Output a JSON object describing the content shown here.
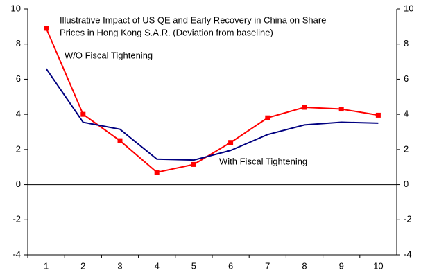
{
  "chart_data": {
    "type": "line",
    "title": [
      "Illustrative Impact of US QE and Early Recovery in China on Share",
      "Prices in Hong Kong S.A.R. (Deviation from baseline)"
    ],
    "categories": [
      "1",
      "2",
      "3",
      "4",
      "5",
      "6",
      "7",
      "8",
      "9",
      "10"
    ],
    "series": [
      {
        "name": "W/O Fiscal Tightening",
        "color": "#ff0000",
        "marker": "square",
        "values": [
          8.9,
          4.0,
          2.5,
          0.7,
          1.15,
          2.4,
          3.8,
          4.4,
          4.3,
          3.95
        ]
      },
      {
        "name": "With Fiscal Tightening",
        "color": "#000080",
        "values": [
          6.6,
          3.55,
          3.15,
          1.45,
          1.4,
          1.95,
          2.85,
          3.4,
          3.55,
          3.5
        ]
      }
    ],
    "ylim": [
      -4,
      10
    ],
    "yticks": [
      -4,
      -2,
      0,
      2,
      4,
      6,
      8,
      10
    ],
    "y2lim": [
      -4,
      10
    ],
    "y2ticks": [
      -4,
      -2,
      0,
      2,
      4,
      6,
      8,
      10
    ]
  }
}
